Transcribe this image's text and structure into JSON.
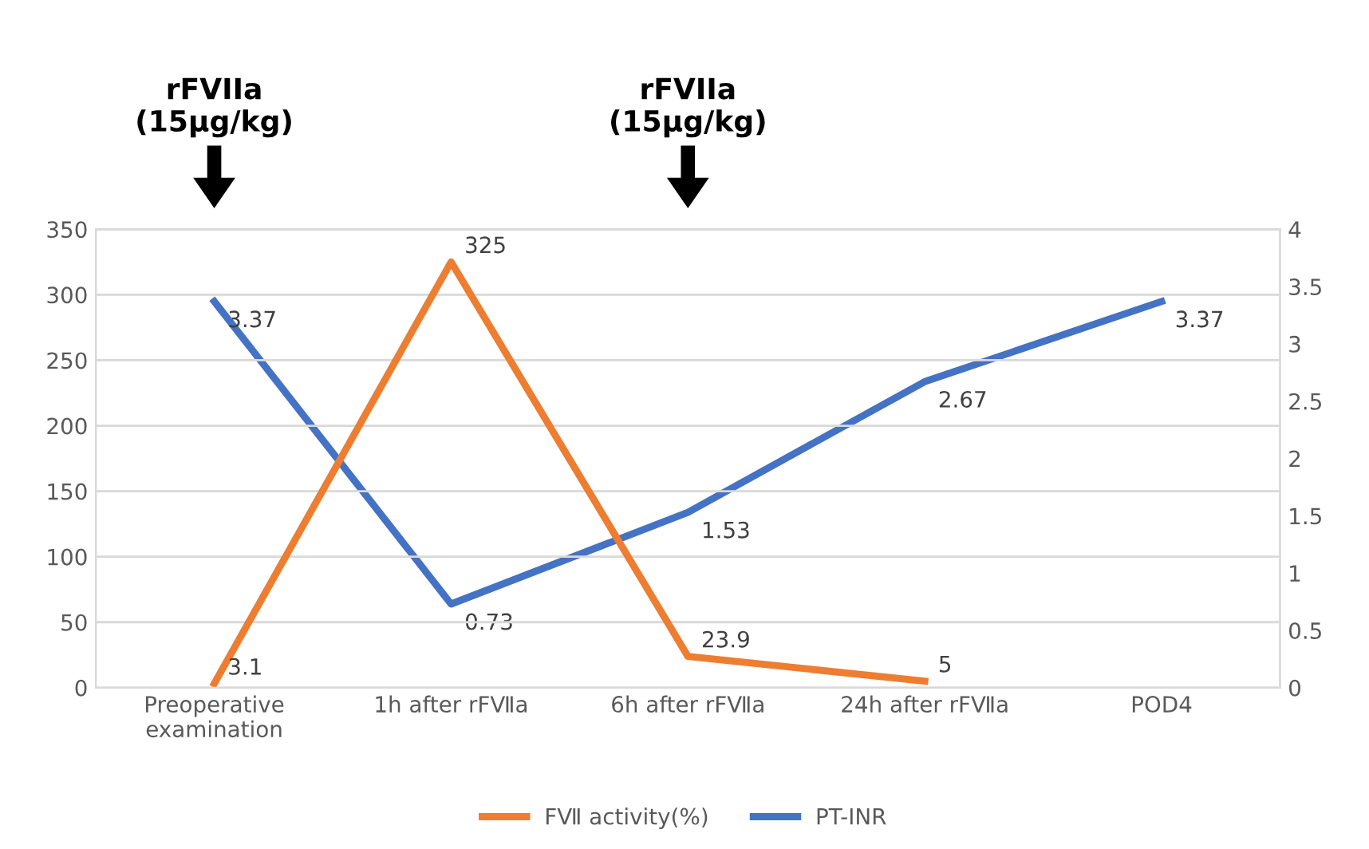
{
  "chart_data": {
    "type": "line",
    "categories": [
      "Preoperative\nexamination",
      "1h after rFⅦa",
      "6h after rFⅦa",
      "24h after rFⅦa",
      "POD4"
    ],
    "series": [
      {
        "name": "FⅦ activity(%)",
        "color": "#ed7d31",
        "values": [
          3.1,
          325,
          23.9,
          5,
          null
        ]
      },
      {
        "name": "PT-INR",
        "color": "#4472c4",
        "values": [
          3.37,
          0.73,
          1.53,
          2.67,
          3.37
        ],
        "axis": "y2"
      }
    ],
    "ylim": [
      0,
      350
    ],
    "yticks": [
      0,
      50,
      100,
      150,
      200,
      250,
      300,
      350
    ],
    "y2lim": [
      0,
      4
    ],
    "y2ticks": [
      0,
      0.5,
      1,
      1.5,
      2,
      2.5,
      3,
      3.5,
      4
    ],
    "annotations": [
      "rFVIIa\n(15μg/kg)",
      "rFVIIa\n(15μg/kg)"
    ],
    "data_labels": true,
    "grid": "y",
    "legend": "bottom",
    "marker": "none",
    "line_style": "solid"
  }
}
